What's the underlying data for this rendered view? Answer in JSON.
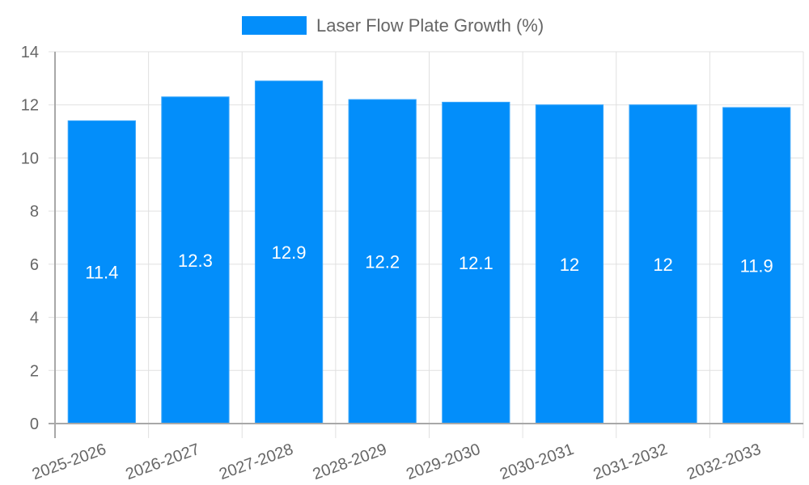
{
  "chart_data": {
    "type": "bar",
    "title": "",
    "legend": {
      "position": "top",
      "entries": [
        {
          "label": "Laser Flow Plate Growth (%)",
          "color": "#038efa"
        }
      ]
    },
    "categories": [
      "2025-2026",
      "2026-2027",
      "2027-2028",
      "2028-2029",
      "2029-2030",
      "2030-2031",
      "2031-2032",
      "2032-2033"
    ],
    "series": [
      {
        "name": "Laser Flow Plate Growth (%)",
        "values": [
          11.4,
          12.3,
          12.9,
          12.2,
          12.1,
          12,
          12,
          11.9
        ],
        "color": "#038efa"
      }
    ],
    "data_labels": [
      "11.4",
      "12.3",
      "12.9",
      "12.2",
      "12.1",
      "12",
      "12",
      "11.9"
    ],
    "xlabel": "",
    "ylabel": "",
    "ylim": [
      0,
      14
    ],
    "yticks": [
      0,
      2,
      4,
      6,
      8,
      10,
      12,
      14
    ],
    "grid": true,
    "x_tick_rotation": -20
  }
}
